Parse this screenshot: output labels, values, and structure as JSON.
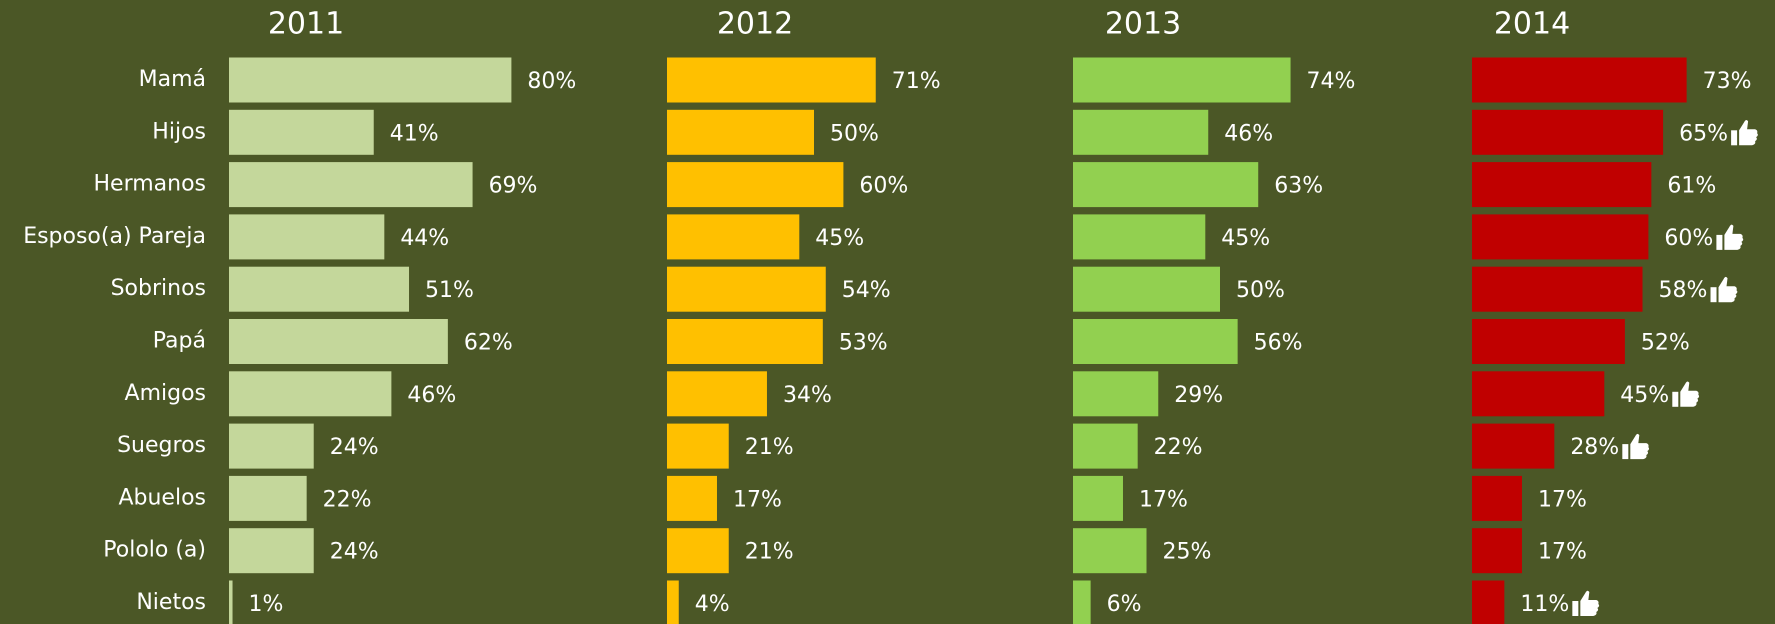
{
  "chart_data": [
    {
      "type": "bar",
      "title": "2011",
      "color": "#c4d79b",
      "categories": [
        "Mamá",
        "Hijos",
        "Hermanos",
        "Esposo(a) Pareja",
        "Sobrinos",
        "Papá",
        "Amigos",
        "Suegros",
        "Abuelos",
        "Pololo (a)",
        "Nietos"
      ],
      "values": [
        80,
        41,
        69,
        44,
        51,
        62,
        46,
        24,
        22,
        24,
        1
      ],
      "value_labels": [
        "80%",
        "41%",
        "69%",
        "44%",
        "51%",
        "62%",
        "46%",
        "24%",
        "22%",
        "24%",
        "1%"
      ]
    },
    {
      "type": "bar",
      "title": "2012",
      "color": "#ffc000",
      "values": [
        71,
        50,
        60,
        45,
        54,
        53,
        34,
        21,
        17,
        21,
        4
      ],
      "value_labels": [
        "71%",
        "50%",
        "60%",
        "45%",
        "54%",
        "53%",
        "34%",
        "21%",
        "17%",
        "21%",
        "4%"
      ]
    },
    {
      "type": "bar",
      "title": "2013",
      "color": "#92d050",
      "values": [
        74,
        46,
        63,
        45,
        50,
        56,
        29,
        22,
        17,
        25,
        6
      ],
      "value_labels": [
        "74%",
        "46%",
        "63%",
        "45%",
        "50%",
        "56%",
        "29%",
        "22%",
        "17%",
        "25%",
        "6%"
      ]
    },
    {
      "type": "bar",
      "title": "2014",
      "color": "#c00000",
      "values": [
        73,
        65,
        61,
        60,
        58,
        52,
        45,
        28,
        17,
        17,
        11
      ],
      "value_labels": [
        "73%",
        "65%",
        "61%",
        "60%",
        "58%",
        "52%",
        "45%",
        "28%",
        "17%",
        "17%",
        "11%"
      ]
    }
  ]
}
